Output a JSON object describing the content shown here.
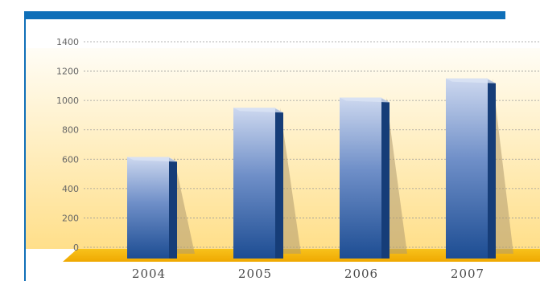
{
  "header": {
    "title": ""
  },
  "colors": {
    "brand": "#0f6fb8",
    "bar_light": "#c9d5ee",
    "bar_dark": "#1f4f96",
    "bar_side": "#163d78",
    "floor": "#f4b400",
    "bg_top": "#fffdf6",
    "bg_bottom": "#ffdf8a"
  },
  "chart_data": {
    "type": "bar",
    "title": "",
    "xlabel": "",
    "ylabel": "",
    "categories": [
      "2004",
      "2005",
      "2006",
      "2007"
    ],
    "values": [
      615,
      950,
      1020,
      1150
    ],
    "ylim": [
      0,
      1400
    ],
    "yticks": [
      0,
      200,
      400,
      600,
      800,
      1000,
      1200,
      1400
    ],
    "grid": true
  }
}
